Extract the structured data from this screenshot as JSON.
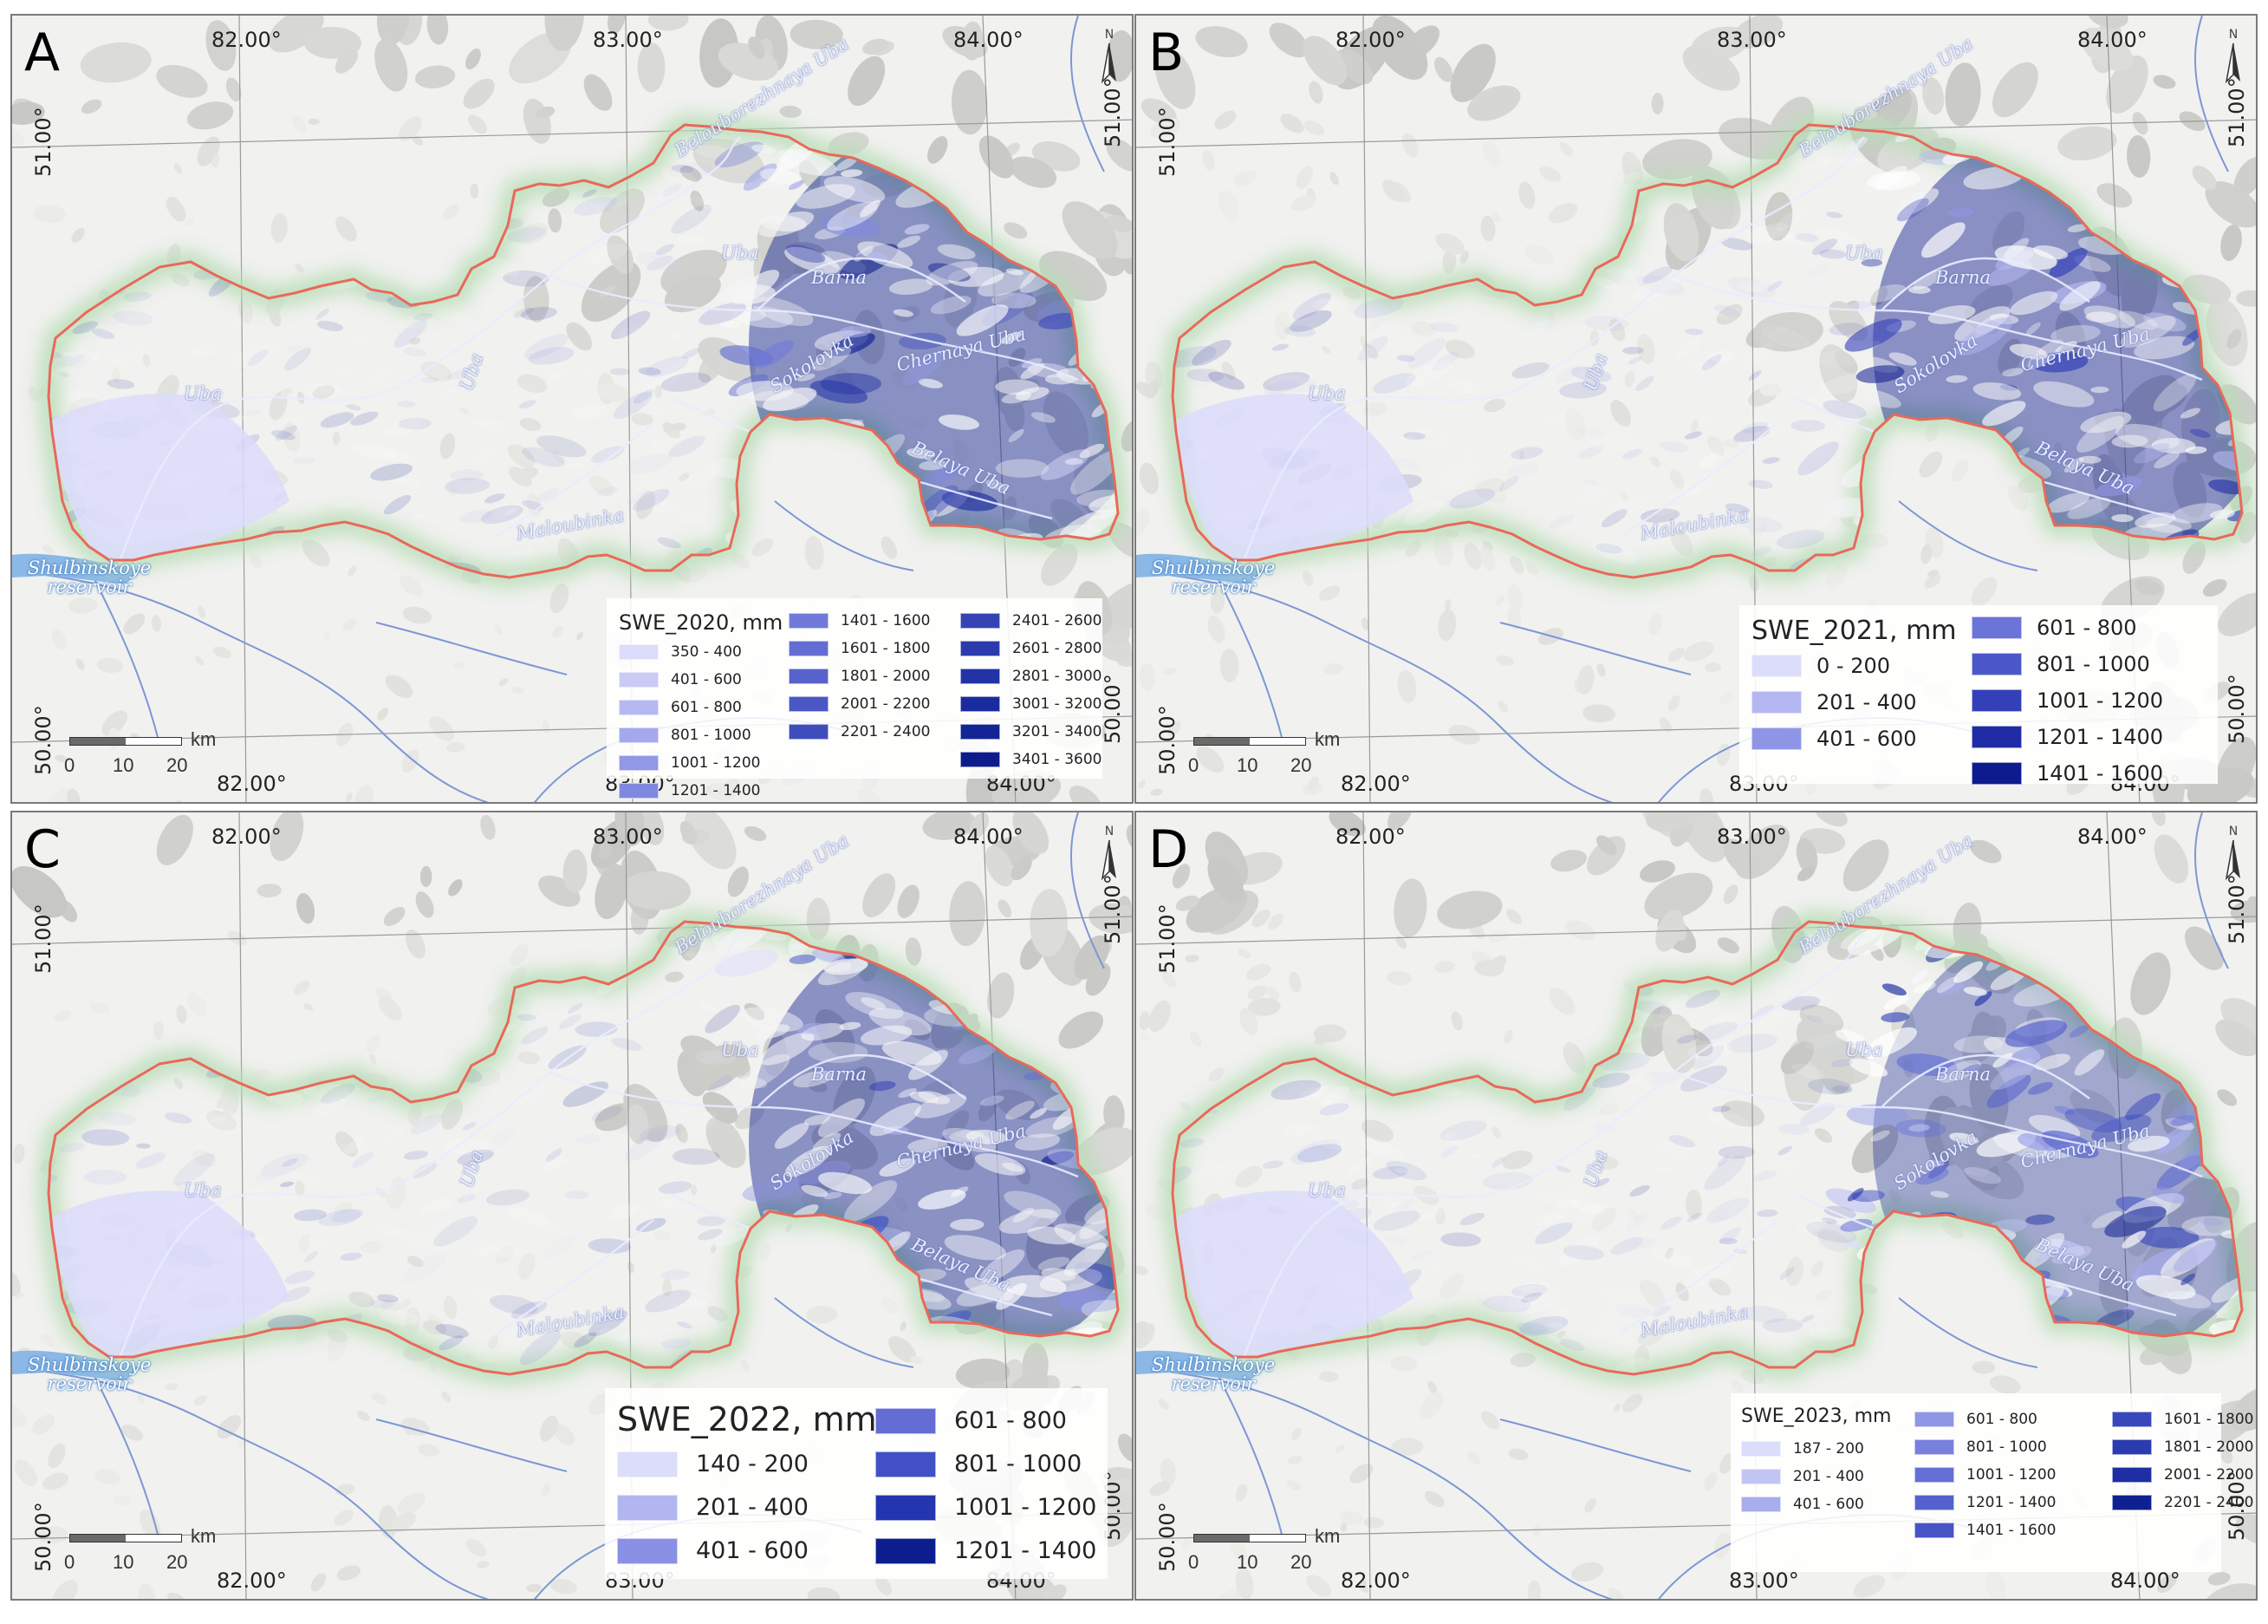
{
  "panels": [
    {
      "letter": "A",
      "legend_title": "SWE_2020, mm",
      "classes": [
        "350 - 400",
        "401 - 600",
        "601 - 800",
        "801 - 1000",
        "1001 - 1200",
        "1201 - 1400",
        "1401 - 1600",
        "1601 - 1800",
        "1801 - 2000",
        "2001 - 2200",
        "2201 - 2400",
        "2401 - 2600",
        "2601 - 2800",
        "2801 - 3000",
        "3001 - 3200",
        "3201 - 3400",
        "3401 - 3600"
      ],
      "colors": [
        "#dcdcfb",
        "#cacaf6",
        "#b6b8f1",
        "#a4a8ec",
        "#9298e6",
        "#8188e0",
        "#717ad9",
        "#636dd3",
        "#5762cc",
        "#4b57c4",
        "#404dbd",
        "#3544b5",
        "#2b3bad",
        "#2233a5",
        "#1a2b9d",
        "#132495",
        "#0c1d8b"
      ]
    },
    {
      "letter": "B",
      "legend_title": "SWE_2021, mm",
      "classes": [
        "0 - 200",
        "201 - 400",
        "401 - 600",
        "601 - 800",
        "801 - 1000",
        "1001 - 1200",
        "1201 - 1400",
        "1401 - 1600"
      ],
      "colors": [
        "#dcdcfb",
        "#b4b7f1",
        "#8f95e5",
        "#6b74d8",
        "#4c57c8",
        "#3440b8",
        "#1f2ca6",
        "#0d1b8e"
      ]
    },
    {
      "letter": "C",
      "legend_title": "SWE_2022, mm",
      "classes": [
        "140 - 200",
        "201 - 400",
        "401 - 600",
        "601 - 800",
        "801 - 1000",
        "1001 - 1200",
        "1201 - 1400"
      ],
      "colors": [
        "#dcdcfb",
        "#b2b5f0",
        "#8a91e4",
        "#636dd4",
        "#4150c4",
        "#2435b0",
        "#0d1d8e"
      ]
    },
    {
      "letter": "D",
      "legend_title": "SWE_2023, mm",
      "classes": [
        "187 - 200",
        "201 - 400",
        "401 - 600",
        "601 - 800",
        "801 - 1000",
        "1001 - 1200",
        "1201 - 1400",
        "1401 - 1600",
        "1601 - 1800",
        "1801 - 2000",
        "2001 - 2200",
        "2201 - 2400"
      ],
      "colors": [
        "#dcdcfb",
        "#c2c4f4",
        "#a8adee",
        "#8f96e6",
        "#7880dd",
        "#6570d5",
        "#5561cd",
        "#4654c4",
        "#3847bb",
        "#2b3bb0",
        "#1e2fa3",
        "#0f2090"
      ]
    }
  ],
  "coords": {
    "lon_top": [
      "82.00°",
      "83.00°",
      "84.00°"
    ],
    "lon_bottom": [
      "82.00°",
      "83.00°",
      "84.00°"
    ],
    "lat_left_top": "51.00°",
    "lat_left_bottom": "50.00°",
    "lat_right_top": "51.00°",
    "lat_right_bottom": "50.00°"
  },
  "rivers": {
    "belouborezhnaya": "Belouborezhnaya Uba",
    "uba_a": "Uba",
    "uba_b": "Uba",
    "uba_c": "Uba",
    "barna": "Barna",
    "chernaya": "Chernaya Uba",
    "sokolovka": "Sokolovka",
    "belaya": "Belaya Uba",
    "maloubinka": "Maloubinka"
  },
  "reservoir": "Shulbinskoye reservoir",
  "scalebar": {
    "unit": "km",
    "ticks": [
      "0",
      "10",
      "20"
    ]
  },
  "north_symbol": "N"
}
